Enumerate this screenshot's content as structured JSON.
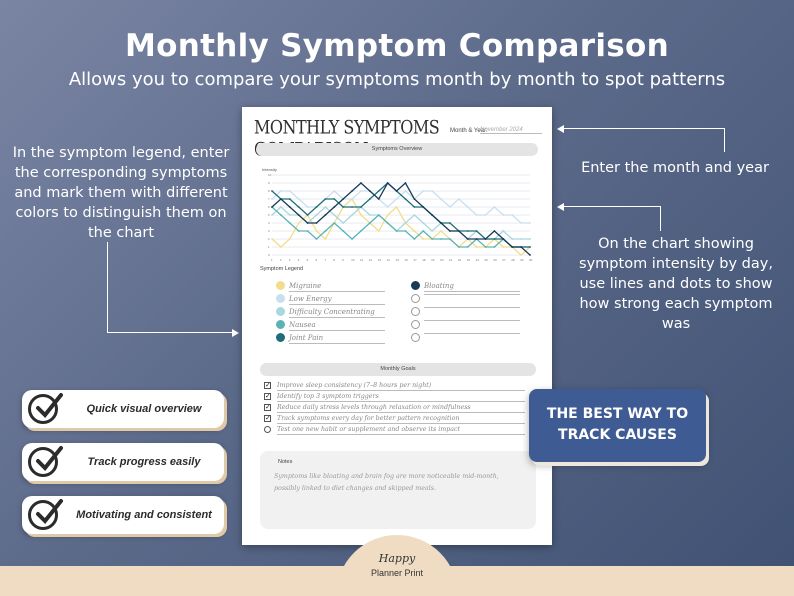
{
  "hero": {
    "title": "Monthly Symptom Comparison",
    "subtitle": "Allows you to compare your symptoms month by month to spot patterns"
  },
  "callouts": {
    "legend_help": "In the symptom legend, enter the corresponding symptoms and mark them with different colors to distinguish them on the chart",
    "month_help": "Enter the month and year",
    "chart_help": "On the chart showing symptom intensity by day, use lines and dots to show how strong each symptom was"
  },
  "sheet": {
    "title": "MONTHLY SYMPTOMS COMPARISON",
    "month_label": "Month & Year:",
    "month_value": "November 2024",
    "chart_section": "Symptoms Overview",
    "legend_section": "Symptom Legend",
    "legend": [
      {
        "label": "Migraine",
        "color": "#f3dc8a"
      },
      {
        "label": "Low Energy",
        "color": "#c9dff0"
      },
      {
        "label": "Difficulty Concentrating",
        "color": "#a9d7de"
      },
      {
        "label": "Nausea",
        "color": "#5cb3b4"
      },
      {
        "label": "Joint Pain",
        "color": "#1f6d78"
      },
      {
        "label": "Bloating",
        "color": "#173b57"
      },
      {
        "label": "",
        "color": "#ffffff"
      },
      {
        "label": "",
        "color": "#ffffff"
      },
      {
        "label": "",
        "color": "#ffffff"
      },
      {
        "label": "",
        "color": "#ffffff"
      }
    ],
    "goals_section": "Monthly Goals",
    "goals": [
      {
        "text": "Improve sleep consistency (7–8 hours per night)",
        "checked": true
      },
      {
        "text": "Identify top 3 symptom triggers",
        "checked": true
      },
      {
        "text": "Reduce daily stress levels through relaxation or mindfulness",
        "checked": true
      },
      {
        "text": "Track symptoms every day for better pattern recognition",
        "checked": true
      },
      {
        "text": "Test one new habit or supplement and observe its impact",
        "checked": false
      }
    ],
    "notes_label": "Notes",
    "notes_text": "Symptoms like bloating and brain fog are more noticeable mid-month, possibly linked to diet changes and skipped meals."
  },
  "chart_data": {
    "type": "line",
    "ylabel": "Intensity",
    "ylim": [
      0,
      10
    ],
    "x": [
      1,
      2,
      3,
      4,
      5,
      6,
      7,
      8,
      9,
      10,
      11,
      12,
      13,
      14,
      15,
      16,
      17,
      18,
      19,
      20,
      21,
      22,
      23,
      24,
      25,
      26,
      27,
      28,
      29,
      30
    ],
    "series": [
      {
        "name": "Migraine",
        "color": "#f3dc8a",
        "values": [
          2,
          1,
          2,
          4,
          5,
          3,
          2,
          4,
          6,
          7,
          5,
          4,
          3,
          5,
          6,
          4,
          3,
          2,
          2,
          3,
          2,
          1,
          2,
          1,
          1,
          2,
          1,
          1,
          0,
          1
        ]
      },
      {
        "name": "Low Energy",
        "color": "#c9dff0",
        "values": [
          7,
          8,
          8,
          7,
          6,
          6,
          7,
          8,
          7,
          7,
          8,
          8,
          7,
          6,
          7,
          8,
          7,
          8,
          8,
          7,
          6,
          7,
          6,
          5,
          5,
          6,
          5,
          5,
          4,
          4
        ]
      },
      {
        "name": "Difficulty Concentrating",
        "color": "#a9d7de",
        "values": [
          5,
          6,
          5,
          5,
          4,
          5,
          6,
          5,
          4,
          5,
          6,
          5,
          5,
          4,
          3,
          4,
          5,
          4,
          3,
          4,
          3,
          3,
          2,
          3,
          2,
          2,
          3,
          2,
          2,
          2
        ]
      },
      {
        "name": "Nausea",
        "color": "#5cb3b4",
        "values": [
          6,
          5,
          4,
          3,
          3,
          2,
          3,
          4,
          3,
          2,
          3,
          4,
          5,
          4,
          3,
          3,
          2,
          3,
          2,
          2,
          2,
          1,
          1,
          2,
          1,
          1,
          2,
          1,
          1,
          1
        ]
      },
      {
        "name": "Joint Pain",
        "color": "#1f6d78",
        "values": [
          8,
          7,
          7,
          6,
          5,
          6,
          7,
          7,
          6,
          6,
          6,
          7,
          8,
          9,
          8,
          7,
          6,
          6,
          5,
          4,
          4,
          3,
          3,
          3,
          2,
          2,
          2,
          1,
          1,
          1
        ]
      },
      {
        "name": "Bloating",
        "color": "#173b57",
        "values": [
          6,
          7,
          6,
          5,
          4,
          4,
          5,
          6,
          7,
          8,
          9,
          8,
          7,
          9,
          8,
          9,
          7,
          6,
          5,
          4,
          3,
          3,
          2,
          2,
          2,
          3,
          2,
          1,
          1,
          0
        ]
      }
    ]
  },
  "features": [
    {
      "label": "Quick visual overview"
    },
    {
      "label": "Track progress easily"
    },
    {
      "label": "Motivating and consistent"
    }
  ],
  "cta": {
    "line1": "THE BEST WAY TO",
    "line2": "TRACK CAUSES"
  },
  "brand": {
    "script": "Happy",
    "sub": "Planner Print"
  }
}
